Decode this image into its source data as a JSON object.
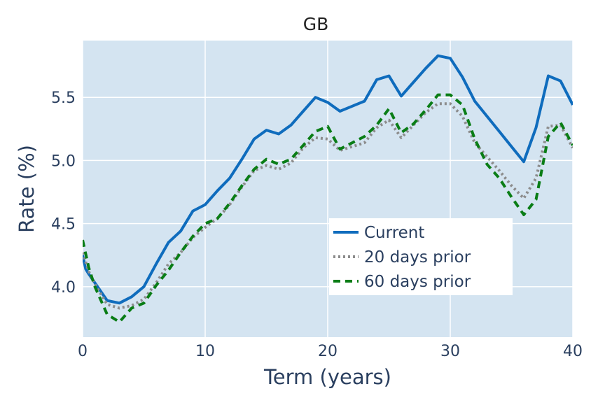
{
  "chart_data": {
    "type": "line",
    "title": "GB",
    "xlabel": "Term (years)",
    "ylabel": "Rate (%)",
    "xlim": [
      0,
      40
    ],
    "ylim": [
      3.6,
      5.95
    ],
    "xticks": [
      0,
      10,
      20,
      30,
      40
    ],
    "xtick_labels": [
      "0",
      "10",
      "20",
      "30",
      "40"
    ],
    "yticks": [
      4.0,
      4.5,
      5.0,
      5.5
    ],
    "ytick_labels": [
      "4.0",
      "4.5",
      "5.0",
      "5.5"
    ],
    "grid": true,
    "legend_position": "bottom-right",
    "plot_background": "#d4e4f1",
    "series": [
      {
        "name": "Current",
        "color": "#0f6cbd",
        "dash": "solid",
        "x": [
          0,
          0.25,
          0.5,
          1,
          2,
          3,
          4,
          5,
          6,
          7,
          8,
          9,
          10,
          11,
          12,
          13,
          14,
          15,
          16,
          17,
          18,
          19,
          20,
          21,
          22,
          23,
          24,
          25,
          26,
          27,
          28,
          29,
          30,
          31,
          32,
          33,
          34,
          35,
          36,
          37,
          38,
          39,
          40
        ],
        "values": [
          4.25,
          4.14,
          4.1,
          4.03,
          3.89,
          3.87,
          3.92,
          4.0,
          4.18,
          4.35,
          4.44,
          4.6,
          4.65,
          4.76,
          4.86,
          5.01,
          5.17,
          5.24,
          5.21,
          5.28,
          5.39,
          5.5,
          5.46,
          5.39,
          5.43,
          5.47,
          5.64,
          5.67,
          5.51,
          5.62,
          5.73,
          5.83,
          5.81,
          5.66,
          5.47,
          5.35,
          5.23,
          5.11,
          4.99,
          5.26,
          5.67,
          5.63,
          5.44
        ]
      },
      {
        "name": "20 days prior",
        "color": "#8c8c8c",
        "dash": "dotted",
        "x": [
          0,
          0.5,
          1,
          2,
          3,
          4,
          5,
          6,
          7,
          8,
          9,
          10,
          11,
          12,
          13,
          14,
          15,
          16,
          17,
          18,
          19,
          20,
          21,
          22,
          23,
          24,
          25,
          26,
          27,
          28,
          29,
          30,
          31,
          32,
          33,
          34,
          35,
          36,
          37,
          38,
          39,
          40
        ],
        "values": [
          4.27,
          4.12,
          4.02,
          3.86,
          3.83,
          3.85,
          3.9,
          4.03,
          4.18,
          4.27,
          4.39,
          4.47,
          4.54,
          4.65,
          4.79,
          4.92,
          4.96,
          4.93,
          4.98,
          5.1,
          5.18,
          5.17,
          5.08,
          5.11,
          5.14,
          5.26,
          5.32,
          5.18,
          5.28,
          5.38,
          5.45,
          5.45,
          5.35,
          5.14,
          5.03,
          4.92,
          4.8,
          4.7,
          4.86,
          5.27,
          5.28,
          5.1
        ]
      },
      {
        "name": "60 days prior",
        "color": "#0a7d16",
        "dash": "dashed",
        "x": [
          0,
          0.5,
          1,
          2,
          3,
          4,
          5,
          6,
          7,
          8,
          9,
          10,
          11,
          12,
          13,
          14,
          15,
          16,
          17,
          18,
          19,
          20,
          21,
          22,
          23,
          24,
          25,
          26,
          27,
          28,
          29,
          30,
          31,
          32,
          33,
          34,
          35,
          36,
          37,
          38,
          39,
          40
        ],
        "values": [
          4.37,
          4.15,
          4.0,
          3.78,
          3.72,
          3.83,
          3.87,
          4.01,
          4.13,
          4.27,
          4.4,
          4.5,
          4.54,
          4.66,
          4.8,
          4.93,
          5.01,
          4.97,
          5.01,
          5.12,
          5.23,
          5.27,
          5.09,
          5.14,
          5.19,
          5.28,
          5.41,
          5.22,
          5.29,
          5.4,
          5.52,
          5.52,
          5.44,
          5.17,
          4.97,
          4.86,
          4.71,
          4.57,
          4.69,
          5.19,
          5.3,
          5.12
        ]
      }
    ]
  }
}
